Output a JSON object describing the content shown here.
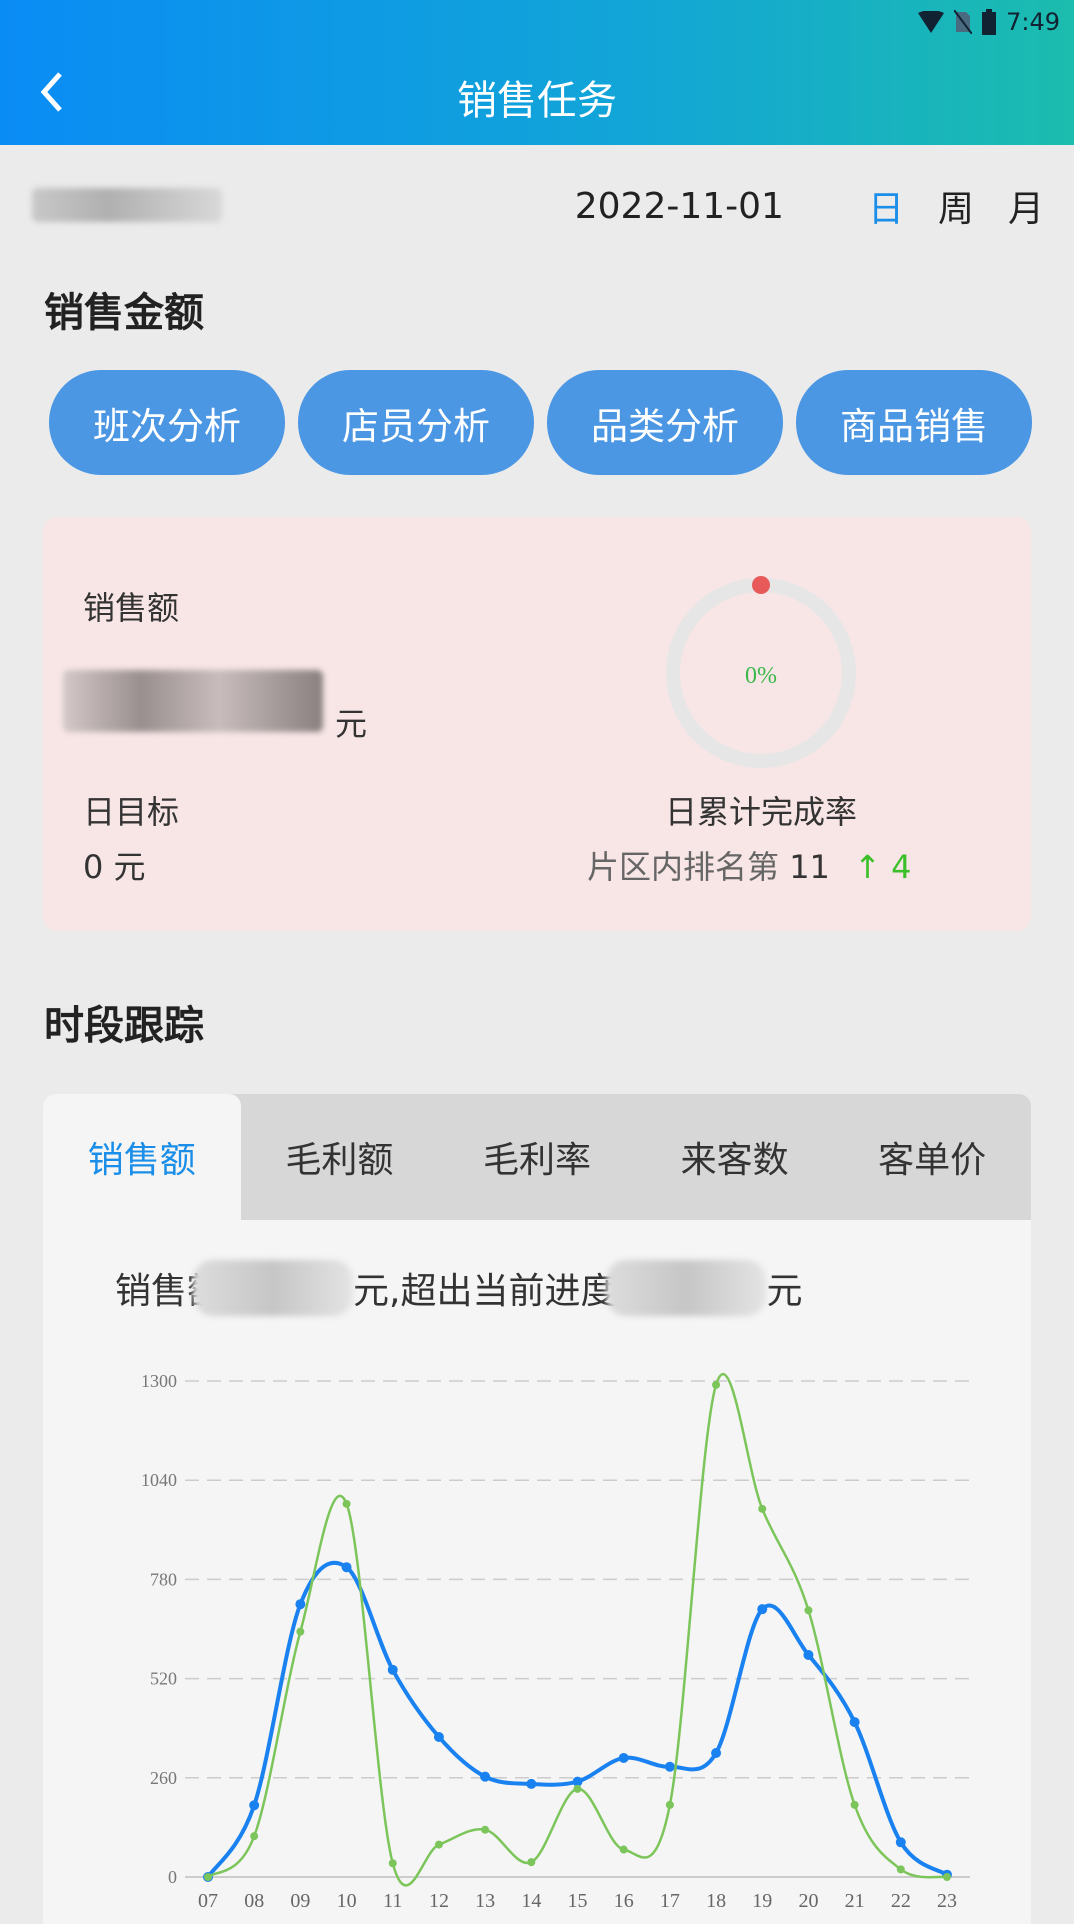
{
  "status_bar": {
    "time": "7:49",
    "icons": [
      "wifi-icon",
      "no-sim-icon",
      "battery-icon"
    ]
  },
  "header": {
    "title": "销售任务",
    "back_icon": "chevron-left-icon"
  },
  "date_filter": {
    "date": "2022-11-01",
    "options": [
      "日",
      "周",
      "月"
    ],
    "selected": "日",
    "accent": "#1a8ee8"
  },
  "sales_amount": {
    "section_title": "销售金额",
    "buttons": [
      "班次分析",
      "店员分析",
      "品类分析",
      "商品销售"
    ],
    "card": {
      "label": "销售额",
      "unit": "元",
      "target_label": "日目标",
      "target_value": "0",
      "target_unit": "元",
      "progress_text": "0%",
      "progress_percent": 0,
      "completion_label": "日累计完成率",
      "rank_label": "片区内排名第",
      "rank_value": "11",
      "rank_change_arrow": "↑",
      "rank_change": "4"
    }
  },
  "time_tracking": {
    "section_title": "时段跟踪",
    "tabs": [
      "销售额",
      "毛利额",
      "毛利率",
      "来客数",
      "客单价"
    ],
    "active_tab": "销售额",
    "summary": {
      "prefix": "销售额",
      "middle": "元,超出当前进度",
      "suffix": "元"
    }
  },
  "chart_data": {
    "type": "line",
    "categories": [
      "07",
      "08",
      "09",
      "10",
      "11",
      "12",
      "13",
      "14",
      "15",
      "16",
      "17",
      "18",
      "19",
      "20",
      "21",
      "22",
      "23"
    ],
    "y_ticks": [
      "0",
      "260",
      "520",
      "780",
      "1040",
      "1300"
    ],
    "ylim": [
      0,
      1300
    ],
    "grid": true,
    "series": [
      {
        "color": "#1a82f0",
        "values": [
          0,
          188,
          715,
          812,
          543,
          367,
          263,
          244,
          250,
          312,
          289,
          325,
          702,
          582,
          406,
          91,
          6
        ]
      },
      {
        "color": "#7cc55a",
        "values": [
          0,
          107,
          643,
          978,
          36,
          85,
          124,
          39,
          231,
          72,
          189,
          1290,
          965,
          699,
          189,
          20,
          0
        ]
      }
    ]
  }
}
